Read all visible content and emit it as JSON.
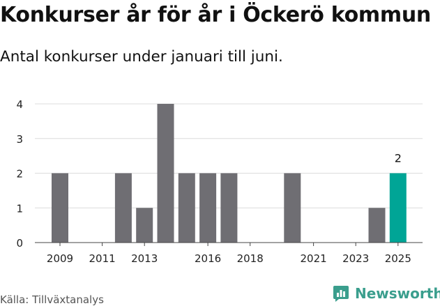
{
  "header": {
    "title": "Konkurser år för år i Öckerö kommun",
    "subtitle": "Antal konkurser under januari till juni."
  },
  "footer": {
    "source": "Källa: Tillväxtanalys",
    "brand": "Newsworthy",
    "brand_icon": "newsworthy-logo-icon"
  },
  "colors": {
    "bar": "#6f6e73",
    "highlight": "#00a596",
    "grid": "#dcdcdc",
    "brand": "#3a9e8d"
  },
  "chart_data": {
    "type": "bar",
    "title": "Konkurser år för år i Öckerö kommun",
    "subtitle": "Antal konkurser under januari till juni.",
    "xlabel": "",
    "ylabel": "",
    "categories": [
      "2009",
      "2010",
      "2011",
      "2012",
      "2013",
      "2014",
      "2015",
      "2016",
      "2017",
      "2018",
      "2019",
      "2020",
      "2021",
      "2022",
      "2023",
      "2024",
      "2025"
    ],
    "values": [
      2,
      0,
      0,
      2,
      1,
      4,
      2,
      2,
      2,
      0,
      0,
      2,
      0,
      0,
      0,
      1,
      2
    ],
    "highlight_category": "2025",
    "x_tick_labels": [
      "2009",
      "2011",
      "2013",
      "2016",
      "2018",
      "2021",
      "2023",
      "2025"
    ],
    "y_ticks": [
      0,
      1,
      2,
      3,
      4
    ],
    "ylim": [
      0,
      4
    ],
    "grid": true,
    "data_labels": [
      {
        "category": "2025",
        "text": "2"
      }
    ]
  }
}
